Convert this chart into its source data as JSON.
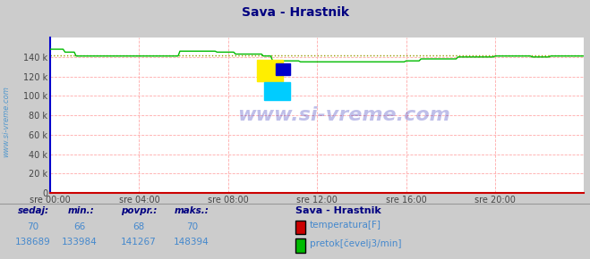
{
  "title": "Sava - Hrastnik",
  "title_color": "#000080",
  "bg_color": "#cccccc",
  "plot_bg_color": "#ffffff",
  "grid_color": "#ffaaaa",
  "ylim": [
    0,
    160000
  ],
  "yticks": [
    0,
    20000,
    40000,
    60000,
    80000,
    100000,
    120000,
    140000
  ],
  "ytick_labels": [
    "0",
    "20 k",
    "40 k",
    "60 k",
    "80 k",
    "100 k",
    "120 k",
    "140 k"
  ],
  "xlim": [
    0,
    288
  ],
  "xtick_positions": [
    0,
    48,
    96,
    144,
    192,
    240
  ],
  "xtick_labels": [
    "sre 00:00",
    "sre 04:00",
    "sre 08:00",
    "sre 12:00",
    "sre 16:00",
    "sre 20:00"
  ],
  "temp_color": "#cc0000",
  "flow_color": "#00bb00",
  "avg_color": "#999900",
  "watermark_text": "www.si-vreme.com",
  "watermark_color": "#0000aa",
  "watermark_alpha": 0.25,
  "ylabel_text": "www.si-vreme.com",
  "ylabel_color": "#5599cc",
  "spine_left_color": "#0000cc",
  "spine_bottom_color": "#cc0000",
  "temp_value": 70,
  "temp_min": 66,
  "temp_avg": 68,
  "temp_max": 70,
  "flow_value": 138689,
  "flow_min": 133984,
  "flow_avg": 141267,
  "flow_max": 148394,
  "legend_title": "Sava - Hrastnik",
  "table_label_color": "#000080",
  "table_value_color": "#4488cc"
}
